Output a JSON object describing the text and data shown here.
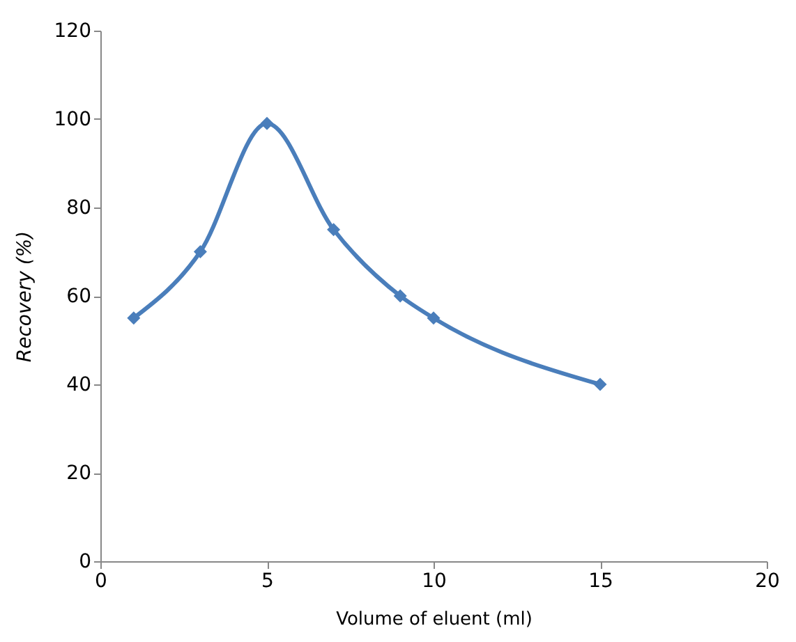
{
  "chart_data": {
    "type": "line",
    "xlabel": "Volume of eluent (ml)",
    "ylabel": "Recovery (%)",
    "x": [
      1,
      3,
      5,
      7,
      9,
      10,
      15
    ],
    "series": [
      {
        "color": "#4a7ebb",
        "values": [
          55,
          70,
          99,
          75,
          60,
          55,
          40
        ]
      }
    ],
    "xlim": [
      0,
      20
    ],
    "xticks": [
      0,
      5,
      10,
      15,
      20
    ],
    "ylim": [
      0,
      120
    ],
    "yticks": [
      0,
      20,
      40,
      60,
      80,
      100,
      120
    ],
    "grid": false,
    "marker": "diamond",
    "line_style": "solid"
  }
}
